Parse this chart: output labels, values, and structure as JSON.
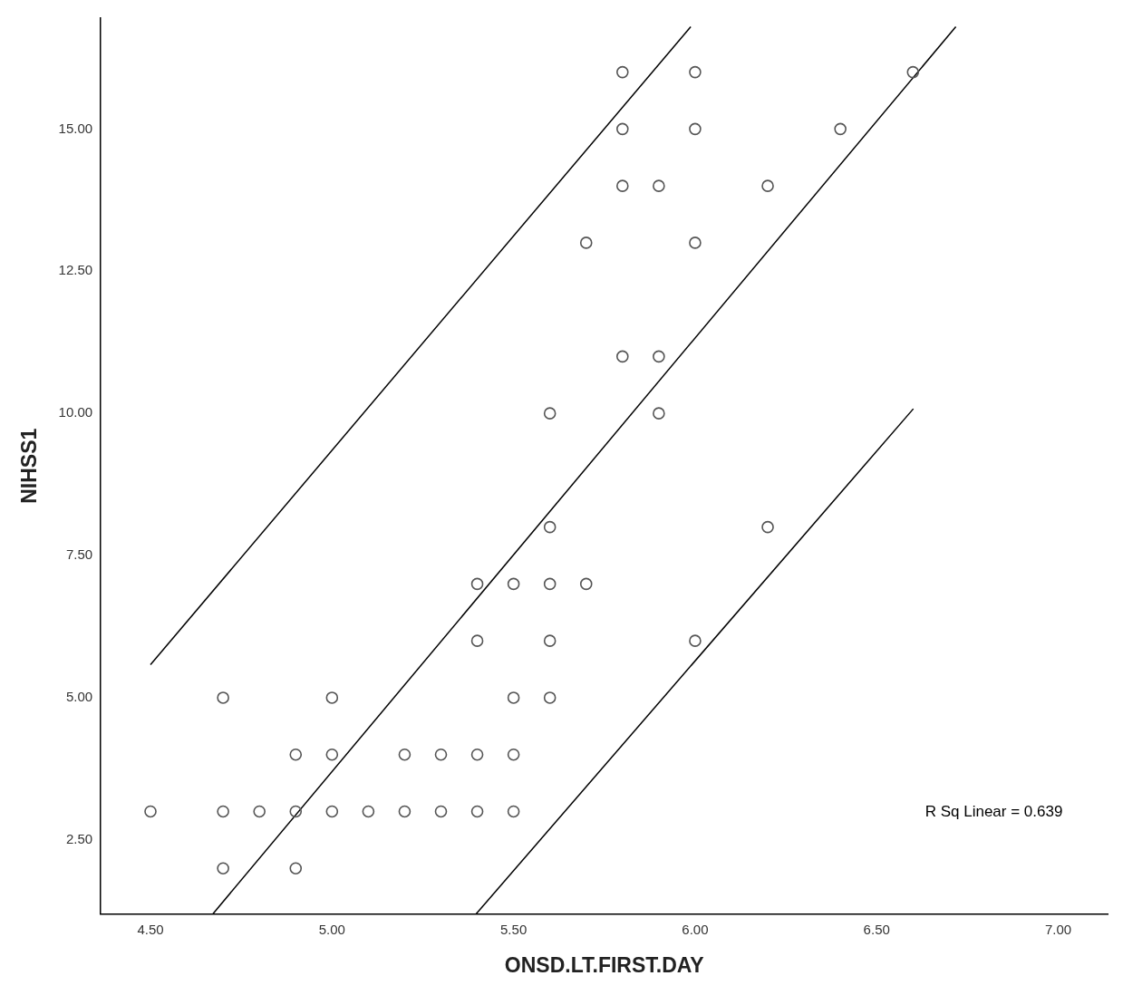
{
  "chart_data": {
    "type": "scatter",
    "xlabel": "ONSD.LT.FIRST.DAY",
    "ylabel": "NIHSS1",
    "xlim": [
      4.363,
      7.137
    ],
    "ylim": [
      1.2,
      16.95
    ],
    "xticks": [
      {
        "value": 4.5,
        "label": "4.50"
      },
      {
        "value": 5,
        "label": "5.00"
      },
      {
        "value": 5.5,
        "label": "5.50"
      },
      {
        "value": 6,
        "label": "6.00"
      },
      {
        "value": 6.5,
        "label": "6.50"
      },
      {
        "value": 7,
        "label": "7.00"
      }
    ],
    "yticks": [
      {
        "value": 2.5,
        "label": "2.50"
      },
      {
        "value": 5,
        "label": "5.00"
      },
      {
        "value": 7.5,
        "label": "7.50"
      },
      {
        "value": 10,
        "label": "10.00"
      },
      {
        "value": 12.5,
        "label": "12.50"
      },
      {
        "value": 15,
        "label": "15.00"
      }
    ],
    "grid": false,
    "legend": false,
    "annotations": [
      "R Sq Linear = 0.639"
    ],
    "series": [
      {
        "type": "scatter",
        "marker": "circle",
        "color": "#555555",
        "x": [
          4.5,
          4.7,
          4.7,
          4.7,
          4.8,
          4.9,
          4.9,
          4.9,
          5.0,
          5.0,
          5.0,
          5.1,
          5.2,
          5.2,
          5.3,
          5.3,
          5.4,
          5.4,
          5.4,
          5.4,
          5.5,
          5.5,
          5.5,
          5.5,
          5.6,
          5.6,
          5.6,
          5.6,
          5.6,
          5.7,
          5.7,
          5.8,
          5.8,
          5.8,
          5.8,
          5.9,
          5.9,
          5.9,
          6.0,
          6.0,
          6.0,
          6.0,
          6.2,
          6.2,
          6.4,
          6.6
        ],
        "values": [
          3,
          3,
          2,
          5,
          3,
          3,
          4,
          2,
          5,
          4,
          3,
          3,
          4,
          3,
          4,
          3,
          4,
          3,
          6,
          7,
          7,
          5,
          4,
          3,
          10,
          8,
          7,
          6,
          5,
          13,
          7,
          16,
          15,
          14,
          11,
          14,
          11,
          10,
          16,
          15,
          13,
          6,
          14,
          8,
          15,
          16
        ]
      },
      {
        "type": "line",
        "marker": "none",
        "color": "#000000",
        "x": [
          4.672,
          6.718
        ],
        "values": [
          1.2,
          16.8
        ]
      },
      {
        "type": "line",
        "marker": "none",
        "color": "#000000",
        "x": [
          4.5,
          5.988
        ],
        "values": [
          5.58,
          16.8
        ]
      },
      {
        "type": "line",
        "marker": "none",
        "color": "#000000",
        "x": [
          5.397,
          6.601
        ],
        "values": [
          1.2,
          10.08
        ]
      }
    ]
  }
}
